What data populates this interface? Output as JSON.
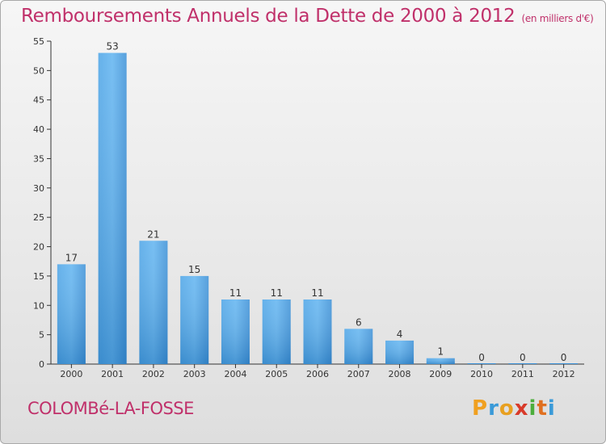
{
  "chart_data": {
    "type": "bar",
    "title": "Remboursements Annuels de la Dette de 2000 à 2012",
    "unit_note": "(en milliers d'€)",
    "categories": [
      "2000",
      "2001",
      "2002",
      "2003",
      "2004",
      "2005",
      "2006",
      "2007",
      "2008",
      "2009",
      "2010",
      "2011",
      "2012"
    ],
    "values": [
      17,
      53,
      21,
      15,
      11,
      11,
      11,
      6,
      4,
      1,
      0,
      0,
      0
    ],
    "ylim": [
      0,
      55
    ],
    "yticks": [
      0,
      5,
      10,
      15,
      20,
      25,
      30,
      35,
      40,
      45,
      50,
      55
    ],
    "grid": false,
    "bar_color": "#3d92d8",
    "title_color": "#c0306a"
  },
  "footer": {
    "commune": "COLOMBé-LA-FOSSE",
    "brand_letters": [
      "P",
      "r",
      "o",
      "x",
      "i",
      "t",
      "i"
    ],
    "brand_colors": [
      "#f0a020",
      "#3a9ad8",
      "#e8a020",
      "#d83a2a",
      "#4cae3c",
      "#e07020",
      "#3a9ad8"
    ]
  }
}
